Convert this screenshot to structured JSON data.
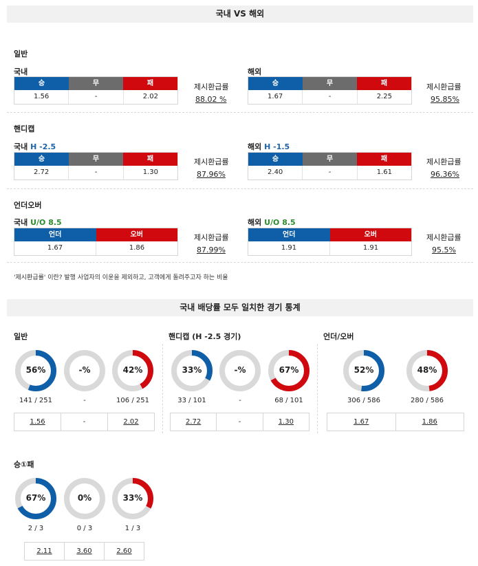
{
  "top_title": "국내 VS 해외",
  "sections": {
    "general": {
      "label": "일반",
      "domestic": {
        "label": "국내",
        "headers": [
          "승",
          "무",
          "패"
        ],
        "values": [
          "1.56",
          "-",
          "2.02"
        ],
        "payout_label": "제시환급률",
        "payout": "88.02 %"
      },
      "overseas": {
        "label": "해외",
        "headers": [
          "승",
          "무",
          "패"
        ],
        "values": [
          "1.67",
          "-",
          "2.25"
        ],
        "payout_label": "제시환급률",
        "payout": "95.85%"
      }
    },
    "handicap": {
      "label": "핸디캡",
      "domestic": {
        "label": "국내",
        "tag": "H -2.5",
        "headers": [
          "승",
          "무",
          "패"
        ],
        "values": [
          "2.72",
          "-",
          "1.30"
        ],
        "payout_label": "제시환급률",
        "payout": "87.96%"
      },
      "overseas": {
        "label": "해외",
        "tag": "H -1.5",
        "headers": [
          "승",
          "무",
          "패"
        ],
        "values": [
          "2.40",
          "-",
          "1.61"
        ],
        "payout_label": "제시환급률",
        "payout": "96.36%"
      }
    },
    "overunder": {
      "label": "언더오버",
      "domestic": {
        "label": "국내",
        "tag": "U/O 8.5",
        "headers": [
          "언더",
          "오버"
        ],
        "values": [
          "1.67",
          "1.86"
        ],
        "payout_label": "제시환급률",
        "payout": "87.99%"
      },
      "overseas": {
        "label": "해외",
        "tag": "U/O 8.5",
        "headers": [
          "언더",
          "오버"
        ],
        "values": [
          "1.91",
          "1.91"
        ],
        "payout_label": "제시환급률",
        "payout": "95.5%"
      }
    }
  },
  "note": "'제시환급률' 이란? 발행 사업자의 이윤을 제외하고, 고객에게 돌려주고자 하는 비율",
  "stats_title": "국내 배당률 모두 일치한 경기 통계",
  "stats": {
    "general": {
      "label": "일반",
      "donuts": [
        {
          "text": "56%",
          "percent": 56,
          "color": "#0f5ea8",
          "count": "141 / 251"
        },
        {
          "text": "-%",
          "percent": 0,
          "color": "#d0090f",
          "count": "-"
        },
        {
          "text": "42%",
          "percent": 42,
          "color": "#d0090f",
          "count": "106 / 251"
        }
      ],
      "odds": [
        "1.56",
        "-",
        "2.02"
      ]
    },
    "handicap": {
      "label": "핸디캡 (H -2.5 경기)",
      "donuts": [
        {
          "text": "33%",
          "percent": 33,
          "color": "#0f5ea8",
          "count": "33 / 101"
        },
        {
          "text": "-%",
          "percent": 0,
          "color": "#d0090f",
          "count": "-"
        },
        {
          "text": "67%",
          "percent": 67,
          "color": "#d0090f",
          "count": "68 / 101"
        }
      ],
      "odds": [
        "2.72",
        "-",
        "1.30"
      ]
    },
    "overunder": {
      "label": "언더/오버",
      "donuts": [
        {
          "text": "52%",
          "percent": 52,
          "color": "#0f5ea8",
          "count": "306 / 586"
        },
        {
          "text": "48%",
          "percent": 48,
          "color": "#d0090f",
          "count": "280 / 586"
        }
      ],
      "odds": [
        "1.67",
        "1.86"
      ]
    },
    "win1": {
      "label": "승①패",
      "donuts": [
        {
          "text": "67%",
          "percent": 67,
          "color": "#0f5ea8",
          "count": "2 / 3"
        },
        {
          "text": "0%",
          "percent": 0,
          "color": "#6c6c6c",
          "count": "0 / 3"
        },
        {
          "text": "33%",
          "percent": 33,
          "color": "#d0090f",
          "count": "1 / 3"
        }
      ],
      "odds": [
        "2.11",
        "3.60",
        "2.60"
      ]
    }
  },
  "colors": {
    "blue": "#0f5ea8",
    "gray": "#6c6c6c",
    "red": "#d0090f",
    "ring_bg": "#d9d9d9"
  }
}
